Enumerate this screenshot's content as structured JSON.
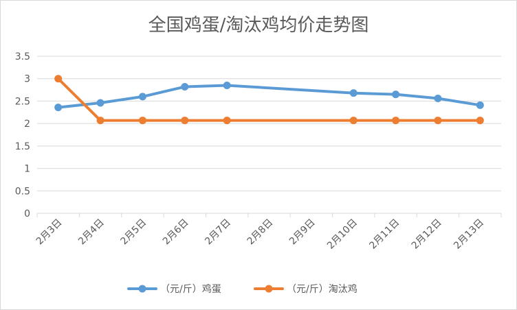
{
  "chart_data": {
    "type": "line",
    "title": "全国鸡蛋/淘汰鸡均价走势图",
    "categories": [
      "2月3日",
      "2月4日",
      "2月5日",
      "2月6日",
      "2月7日",
      "2月8日",
      "2月9日",
      "2月10日",
      "2月11日",
      "2月12日",
      "2月13日"
    ],
    "series": [
      {
        "name": "（元/斤）鸡蛋",
        "color": "#5b9bd5",
        "values": [
          2.36,
          2.46,
          2.6,
          2.82,
          2.85,
          null,
          null,
          2.68,
          2.65,
          2.56,
          2.41
        ]
      },
      {
        "name": "（元/斤）淘汰鸡",
        "color": "#ed7d31",
        "values": [
          3.0,
          2.07,
          2.07,
          2.07,
          2.07,
          null,
          null,
          2.07,
          2.07,
          2.07,
          2.07
        ]
      }
    ],
    "ylim": [
      0,
      3.5
    ],
    "yticks": [
      "0",
      "0.5",
      "1",
      "1.5",
      "2",
      "2.5",
      "3",
      "3.5"
    ],
    "grid": true,
    "legend": "bottom",
    "xlabel": "",
    "ylabel": ""
  }
}
